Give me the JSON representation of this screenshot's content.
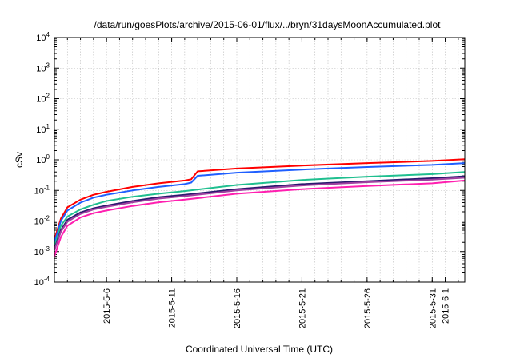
{
  "chart_data": {
    "type": "line",
    "title": "/data/run/goesPlots/archive/2015-06-01/flux/../bryn/31daysMoonAccumulated.plot",
    "xlabel": "Coordinated Universal Time (UTC)",
    "ylabel": "cSv",
    "yscale": "log",
    "ylim": [
      0.0001,
      10000
    ],
    "xlim": [
      "2015-05-02",
      "2015-06-02T12:00"
    ],
    "grid": true,
    "legend": "none",
    "y_ticks": [
      {
        "base": "10",
        "exp": "-4",
        "value": 0.0001
      },
      {
        "base": "10",
        "exp": "-3",
        "value": 0.001
      },
      {
        "base": "10",
        "exp": "-2",
        "value": 0.01
      },
      {
        "base": "10",
        "exp": "-1",
        "value": 0.1
      },
      {
        "base": "10",
        "exp": "0",
        "value": 1
      },
      {
        "base": "10",
        "exp": "1",
        "value": 10
      },
      {
        "base": "10",
        "exp": "2",
        "value": 100
      },
      {
        "base": "10",
        "exp": "3",
        "value": 1000
      },
      {
        "base": "10",
        "exp": "4",
        "value": 10000
      }
    ],
    "x_ticks": [
      {
        "label": "2015-5-6",
        "date": "2015-05-06"
      },
      {
        "label": "2015-5-11",
        "date": "2015-05-11"
      },
      {
        "label": "2015-5-16",
        "date": "2015-05-16"
      },
      {
        "label": "2015-5-21",
        "date": "2015-05-21"
      },
      {
        "label": "2015-5-26",
        "date": "2015-05-26"
      },
      {
        "label": "2015-5-31",
        "date": "2015-05-31"
      },
      {
        "label": "2015-6-1",
        "date": "2015-06-01"
      }
    ],
    "series": [
      {
        "color": "#ff0000",
        "x": [
          "2015-05-02",
          "2015-05-02T12:00",
          "2015-05-03",
          "2015-05-04",
          "2015-05-05",
          "2015-05-06",
          "2015-05-08",
          "2015-05-10",
          "2015-05-12",
          "2015-05-12T12:00",
          "2015-05-13",
          "2015-05-16",
          "2015-05-21",
          "2015-05-26",
          "2015-05-31",
          "2015-06-02T12:00"
        ],
        "y": [
          0.0025,
          0.012,
          0.028,
          0.05,
          0.072,
          0.09,
          0.13,
          0.17,
          0.21,
          0.23,
          0.42,
          0.52,
          0.65,
          0.78,
          0.92,
          1.05
        ]
      },
      {
        "color": "#1f5fff",
        "x": [
          "2015-05-02",
          "2015-05-02T12:00",
          "2015-05-03",
          "2015-05-04",
          "2015-05-05",
          "2015-05-06",
          "2015-05-08",
          "2015-05-10",
          "2015-05-12",
          "2015-05-12T12:00",
          "2015-05-13",
          "2015-05-16",
          "2015-05-21",
          "2015-05-26",
          "2015-05-31",
          "2015-06-02T12:00"
        ],
        "y": [
          0.002,
          0.01,
          0.022,
          0.04,
          0.058,
          0.072,
          0.1,
          0.13,
          0.16,
          0.18,
          0.3,
          0.38,
          0.48,
          0.58,
          0.68,
          0.78
        ]
      },
      {
        "color": "#1fbf8f",
        "x": [
          "2015-05-02",
          "2015-05-02T12:00",
          "2015-05-03",
          "2015-05-04",
          "2015-05-05",
          "2015-05-06",
          "2015-05-08",
          "2015-05-10",
          "2015-05-12",
          "2015-05-16",
          "2015-05-21",
          "2015-05-26",
          "2015-05-31",
          "2015-06-02T12:00"
        ],
        "y": [
          0.0015,
          0.007,
          0.014,
          0.024,
          0.034,
          0.045,
          0.062,
          0.078,
          0.095,
          0.15,
          0.22,
          0.28,
          0.34,
          0.4
        ]
      },
      {
        "color": "#2a1a6e",
        "x": [
          "2015-05-02",
          "2015-05-02T12:00",
          "2015-05-03",
          "2015-05-04",
          "2015-05-05",
          "2015-05-06",
          "2015-05-08",
          "2015-05-10",
          "2015-05-12",
          "2015-05-16",
          "2015-05-21",
          "2015-05-26",
          "2015-05-31",
          "2015-06-02T12:00"
        ],
        "y": [
          0.0012,
          0.005,
          0.011,
          0.019,
          0.026,
          0.032,
          0.045,
          0.06,
          0.072,
          0.11,
          0.16,
          0.2,
          0.25,
          0.29
        ]
      },
      {
        "color": "#a040a0",
        "x": [
          "2015-05-02",
          "2015-05-02T12:00",
          "2015-05-03",
          "2015-05-04",
          "2015-05-05",
          "2015-05-06",
          "2015-05-08",
          "2015-05-10",
          "2015-05-12",
          "2015-05-16",
          "2015-05-21",
          "2015-05-26",
          "2015-05-31",
          "2015-06-02T12:00"
        ],
        "y": [
          0.0011,
          0.0045,
          0.0095,
          0.017,
          0.024,
          0.029,
          0.041,
          0.054,
          0.065,
          0.1,
          0.145,
          0.185,
          0.225,
          0.26
        ]
      },
      {
        "color": "#ff1fb0",
        "x": [
          "2015-05-02",
          "2015-05-02T12:00",
          "2015-05-03",
          "2015-05-04",
          "2015-05-05",
          "2015-05-06",
          "2015-05-08",
          "2015-05-10",
          "2015-05-12",
          "2015-05-16",
          "2015-05-21",
          "2015-05-26",
          "2015-05-31",
          "2015-06-02T12:00"
        ],
        "y": [
          0.0007,
          0.003,
          0.007,
          0.013,
          0.018,
          0.022,
          0.031,
          0.041,
          0.05,
          0.078,
          0.11,
          0.14,
          0.17,
          0.21
        ]
      }
    ]
  }
}
